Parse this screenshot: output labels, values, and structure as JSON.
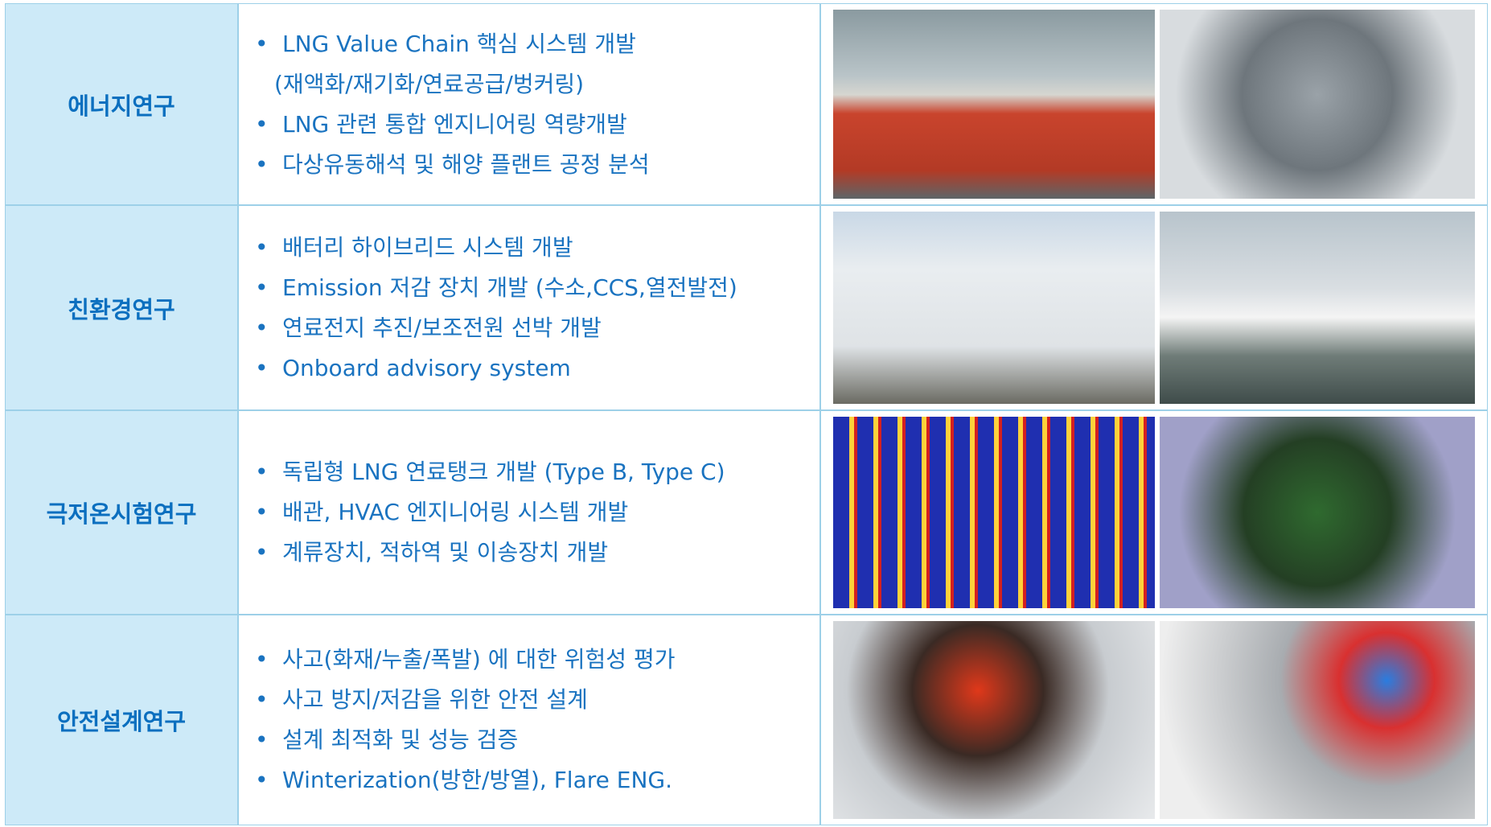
{
  "table": {
    "rows": [
      {
        "title": "에너지연구",
        "items": [
          "LNG Value Chain 핵심 시스템 개발",
          "(재액화/재기화/연료공급/벙커링)",
          "LNG 관련 통합 엔지니어링 역량개발",
          "다상유동해석 및 해양 플랜트 공정 분석"
        ]
      },
      {
        "title": "친환경연구",
        "items": [
          "배터리 하이브리드 시스템 개발",
          "Emission  저감 장치 개발 (수소,CCS,열전발전)",
          "연료전지 추진/보조전원 선박 개발",
          "Onboard advisory system"
        ]
      },
      {
        "title": "극저온시험연구",
        "items": [
          "독립형 LNG 연료탱크 개발 (Type B, Type C)",
          "배관, HVAC 엔지니어링 시스템 개발",
          "계류장치, 적하역 및 이송장치 개발"
        ]
      },
      {
        "title": "안전설계연구",
        "items": [
          "사고(화재/누출/폭발) 에 대한 위험성 평가",
          "사고 방지/저감을 위한 안전 설계",
          "설계 최적화 및 성능 검증",
          "Winterization(방한/방열), Flare ENG."
        ]
      }
    ]
  }
}
